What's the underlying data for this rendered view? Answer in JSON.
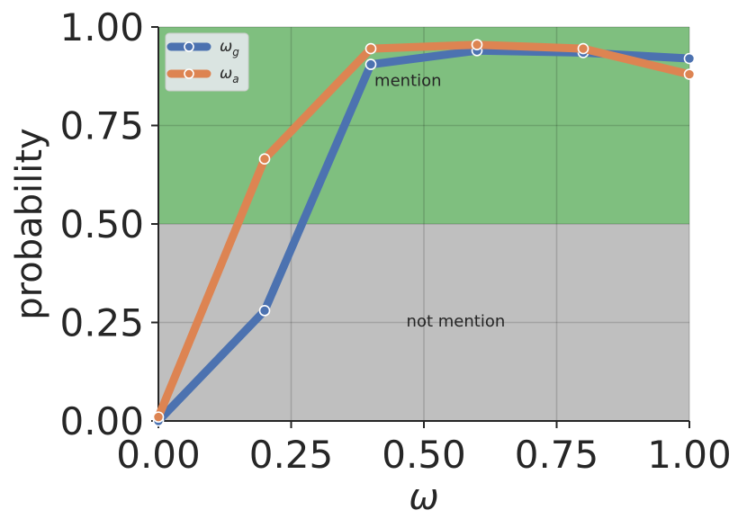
{
  "chart_data": {
    "type": "line",
    "title": "",
    "xlabel": "ω",
    "ylabel": "probability",
    "xlim": [
      0.0,
      1.0
    ],
    "ylim": [
      0.0,
      1.0
    ],
    "xticks": [
      0.0,
      0.25,
      0.5,
      0.75,
      1.0
    ],
    "xtick_labels": [
      "0.00",
      "0.25",
      "0.50",
      "0.75",
      "1.00"
    ],
    "yticks": [
      0.0,
      0.25,
      0.5,
      0.75,
      1.0
    ],
    "ytick_labels": [
      "0.00",
      "0.25",
      "0.50",
      "0.75",
      "1.00"
    ],
    "grid": true,
    "legend_position": "top-left",
    "regions": [
      {
        "label": "mention",
        "y_from": 0.5,
        "y_to": 1.0,
        "color": "#7fbf7f"
      },
      {
        "label": "not mention",
        "y_from": 0.0,
        "y_to": 0.5,
        "color": "#bfbfbf"
      }
    ],
    "series": [
      {
        "name": "ω_g",
        "legend_base": "ω",
        "legend_sub": "g",
        "color": "#4c72b0",
        "x": [
          0.0,
          0.2,
          0.4,
          0.6,
          0.8,
          1.0
        ],
        "values": [
          0.0,
          0.28,
          0.905,
          0.94,
          0.935,
          0.92
        ]
      },
      {
        "name": "ω_a",
        "legend_base": "ω",
        "legend_sub": "a",
        "color": "#dd8452",
        "x": [
          0.0,
          0.2,
          0.4,
          0.6,
          0.8,
          1.0
        ],
        "values": [
          0.01,
          0.665,
          0.945,
          0.955,
          0.945,
          0.88
        ]
      }
    ]
  }
}
